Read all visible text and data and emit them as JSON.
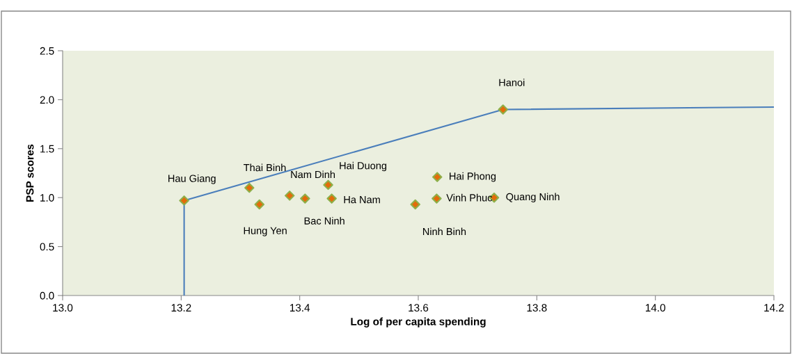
{
  "chart_data": {
    "type": "scatter",
    "xlabel": "Log of per capita spending",
    "ylabel": "PSP scores",
    "xlim": [
      13.0,
      14.2
    ],
    "xticks": [
      {
        "value": 13.0,
        "label": "13.0"
      },
      {
        "value": 13.2,
        "label": "13.2"
      },
      {
        "value": 13.4,
        "label": "13.4"
      },
      {
        "value": 13.6,
        "label": "13.6"
      },
      {
        "value": 13.8,
        "label": "13.8"
      },
      {
        "value": 14.0,
        "label": "14.0"
      },
      {
        "value": 14.2,
        "label": "14.2"
      }
    ],
    "ylim": [
      0,
      2.5
    ],
    "yticks": [
      {
        "value": 0,
        "label": "0.0"
      },
      {
        "value": 0.5,
        "label": "0.5"
      },
      {
        "value": 1.0,
        "label": "1.0"
      },
      {
        "value": 1.5,
        "label": "1.5"
      },
      {
        "value": 2.0,
        "label": "2.0"
      },
      {
        "value": 2.5,
        "label": "2.5"
      }
    ],
    "grid": false,
    "legend": false,
    "series": [
      {
        "type": "scatter",
        "marker": "diamond",
        "color": "#e36c0a",
        "x": [
          13.205,
          13.315,
          13.332,
          13.383,
          13.409,
          13.448,
          13.454,
          13.595,
          13.632,
          13.631,
          13.728,
          13.743
        ],
        "values": [
          0.97,
          1.1,
          0.93,
          1.02,
          0.99,
          1.13,
          0.99,
          0.93,
          1.21,
          0.99,
          1.0,
          1.9
        ]
      },
      {
        "type": "line",
        "marker": "none",
        "line_style": "solid",
        "color": "#4a7ebb",
        "x": [
          13.205,
          13.205,
          13.743,
          14.2
        ],
        "values": [
          0,
          0.97,
          1.9,
          1.925
        ]
      }
    ],
    "annotations": [
      {
        "text": "Hau Giang",
        "x": 13.205,
        "y": 0.97
      },
      {
        "text": "Thai Binh",
        "x": 13.315,
        "y": 1.1
      },
      {
        "text": "Hung Yen",
        "x": 13.332,
        "y": 0.93
      },
      {
        "text": "Nam Dinh",
        "x": 13.383,
        "y": 1.02
      },
      {
        "text": "Bac Ninh",
        "x": 13.409,
        "y": 0.99
      },
      {
        "text": "Hai Duong",
        "x": 13.448,
        "y": 1.13
      },
      {
        "text": "Ha Nam",
        "x": 13.454,
        "y": 0.99
      },
      {
        "text": "Ninh Binh",
        "x": 13.595,
        "y": 0.93
      },
      {
        "text": "Hai Phong",
        "x": 13.632,
        "y": 1.21
      },
      {
        "text": "Vinh Phuc",
        "x": 13.631,
        "y": 0.99
      },
      {
        "text": "Quang Ninh",
        "x": 13.728,
        "y": 1.0
      },
      {
        "text": "Hanoi",
        "x": 13.743,
        "y": 1.9
      }
    ]
  }
}
